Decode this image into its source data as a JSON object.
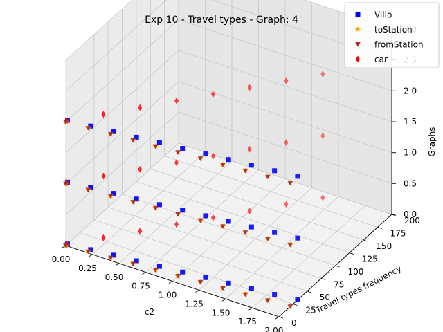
{
  "chart_data": {
    "type": "scatter",
    "title": "Exp 10 - Travel types - Graph: 4",
    "xlabel": "c2",
    "ylabel": "Travel types frequency",
    "zlabel": "Graphs",
    "x_ticks": [
      "0.00",
      "0.25",
      "0.50",
      "0.75",
      "1.00",
      "1.25",
      "1.50",
      "1.75",
      "2.00"
    ],
    "y_ticks": [
      "0",
      "25",
      "50",
      "75",
      "100",
      "125",
      "150",
      "175",
      "200"
    ],
    "z_ticks": [
      "0.0",
      "0.5",
      "1.0",
      "1.5",
      "2.0",
      "2.5",
      "3.0"
    ],
    "xlim": [
      0,
      2
    ],
    "ylim": [
      0,
      200
    ],
    "zlim": [
      0,
      3
    ],
    "grid": true,
    "legend": "top-right",
    "x_values": [
      0,
      0.2,
      0.4,
      0.6,
      0.8,
      1.0,
      1.2,
      1.4,
      1.6,
      1.8,
      2.0
    ],
    "series": [
      {
        "name": "Villo",
        "marker": "square",
        "color": "#0000ff",
        "points": [
          [
            0,
            3,
            2
          ],
          [
            0.2,
            6,
            2
          ],
          [
            0.4,
            9,
            2
          ],
          [
            0.6,
            12,
            2
          ],
          [
            0.8,
            15,
            2
          ],
          [
            1.0,
            18,
            2
          ],
          [
            1.2,
            21,
            2
          ],
          [
            1.4,
            24,
            2
          ],
          [
            1.6,
            27,
            2
          ],
          [
            1.8,
            30,
            2
          ],
          [
            2.0,
            33,
            2
          ],
          [
            0,
            3,
            1
          ],
          [
            0.2,
            6,
            1
          ],
          [
            0.4,
            9,
            1
          ],
          [
            0.6,
            12,
            1
          ],
          [
            0.8,
            15,
            1
          ],
          [
            1.0,
            18,
            1
          ],
          [
            1.2,
            21,
            1
          ],
          [
            1.4,
            24,
            1
          ],
          [
            1.6,
            27,
            1
          ],
          [
            1.8,
            30,
            1
          ],
          [
            2.0,
            33,
            1
          ],
          [
            0,
            3,
            0
          ],
          [
            0.2,
            6,
            0
          ],
          [
            0.4,
            9,
            0
          ],
          [
            0.6,
            12,
            0
          ],
          [
            0.8,
            15,
            0
          ],
          [
            1.0,
            18,
            0
          ],
          [
            1.2,
            21,
            0
          ],
          [
            1.4,
            24,
            0
          ],
          [
            1.6,
            27,
            0
          ],
          [
            1.8,
            30,
            0
          ],
          [
            2.0,
            33,
            0
          ]
        ]
      },
      {
        "name": "toStation",
        "marker": "star",
        "color": "#ffa500",
        "points": [
          [
            0,
            0,
            2
          ],
          [
            0.2,
            2,
            2
          ],
          [
            0.4,
            4,
            2
          ],
          [
            0.6,
            6,
            2
          ],
          [
            0.8,
            8,
            2
          ],
          [
            1.0,
            10,
            2
          ],
          [
            1.2,
            12,
            2
          ],
          [
            1.4,
            14,
            2
          ],
          [
            1.6,
            16,
            2
          ],
          [
            1.8,
            18,
            2
          ],
          [
            2.0,
            20,
            2
          ],
          [
            0,
            0,
            1
          ],
          [
            0.2,
            2,
            1
          ],
          [
            0.4,
            4,
            1
          ],
          [
            0.6,
            6,
            1
          ],
          [
            0.8,
            8,
            1
          ],
          [
            1.0,
            10,
            1
          ],
          [
            1.2,
            12,
            1
          ],
          [
            1.4,
            14,
            1
          ],
          [
            1.6,
            16,
            1
          ],
          [
            1.8,
            18,
            1
          ],
          [
            2.0,
            20,
            1
          ],
          [
            0,
            0,
            0
          ],
          [
            0.2,
            2,
            0
          ],
          [
            0.4,
            4,
            0
          ],
          [
            0.6,
            6,
            0
          ],
          [
            0.8,
            8,
            0
          ],
          [
            1.0,
            10,
            0
          ],
          [
            1.2,
            12,
            0
          ],
          [
            1.4,
            14,
            0
          ],
          [
            1.6,
            16,
            0
          ],
          [
            1.8,
            18,
            0
          ],
          [
            2.0,
            20,
            0
          ]
        ]
      },
      {
        "name": "fromStation",
        "marker": "triangle-down",
        "color": "#a52a2a",
        "points": [
          [
            0,
            0,
            2
          ],
          [
            0.2,
            2,
            2
          ],
          [
            0.4,
            4,
            2
          ],
          [
            0.6,
            6,
            2
          ],
          [
            0.8,
            8,
            2
          ],
          [
            1.0,
            10,
            2
          ],
          [
            1.2,
            12,
            2
          ],
          [
            1.4,
            14,
            2
          ],
          [
            1.6,
            16,
            2
          ],
          [
            1.8,
            18,
            2
          ],
          [
            2.0,
            20,
            2
          ],
          [
            0,
            0,
            1
          ],
          [
            0.2,
            2,
            1
          ],
          [
            0.4,
            4,
            1
          ],
          [
            0.6,
            6,
            1
          ],
          [
            0.8,
            8,
            1
          ],
          [
            1.0,
            10,
            1
          ],
          [
            1.2,
            12,
            1
          ],
          [
            1.4,
            14,
            1
          ],
          [
            1.6,
            16,
            1
          ],
          [
            1.8,
            18,
            1
          ],
          [
            2.0,
            20,
            1
          ],
          [
            0,
            0,
            0
          ],
          [
            0.2,
            2,
            0
          ],
          [
            0.4,
            4,
            0
          ],
          [
            0.6,
            6,
            0
          ],
          [
            0.8,
            8,
            0
          ],
          [
            1.0,
            10,
            0
          ],
          [
            1.2,
            12,
            0
          ],
          [
            1.4,
            14,
            0
          ],
          [
            1.6,
            16,
            0
          ],
          [
            1.8,
            18,
            0
          ],
          [
            2.0,
            20,
            0
          ]
        ]
      },
      {
        "name": "car",
        "marker": "diamond",
        "color": "#ff0000",
        "points": [
          [
            0,
            2,
            2
          ],
          [
            0.2,
            29,
            2
          ],
          [
            0.4,
            56,
            2
          ],
          [
            0.6,
            83,
            2
          ],
          [
            0.8,
            110,
            2
          ],
          [
            1.0,
            137,
            2
          ],
          [
            1.2,
            164,
            2
          ],
          [
            1.4,
            191,
            2
          ],
          [
            0,
            2,
            1
          ],
          [
            0.2,
            29,
            1
          ],
          [
            0.4,
            56,
            1
          ],
          [
            0.6,
            83,
            1
          ],
          [
            0.8,
            110,
            1
          ],
          [
            1.0,
            137,
            1
          ],
          [
            1.2,
            164,
            1
          ],
          [
            1.4,
            191,
            1
          ],
          [
            0,
            2,
            0
          ],
          [
            0.2,
            29,
            0
          ],
          [
            0.4,
            56,
            0
          ],
          [
            0.6,
            83,
            0
          ],
          [
            0.8,
            110,
            0
          ],
          [
            1.0,
            137,
            0
          ],
          [
            1.2,
            164,
            0
          ],
          [
            1.4,
            191,
            0
          ]
        ]
      }
    ]
  }
}
